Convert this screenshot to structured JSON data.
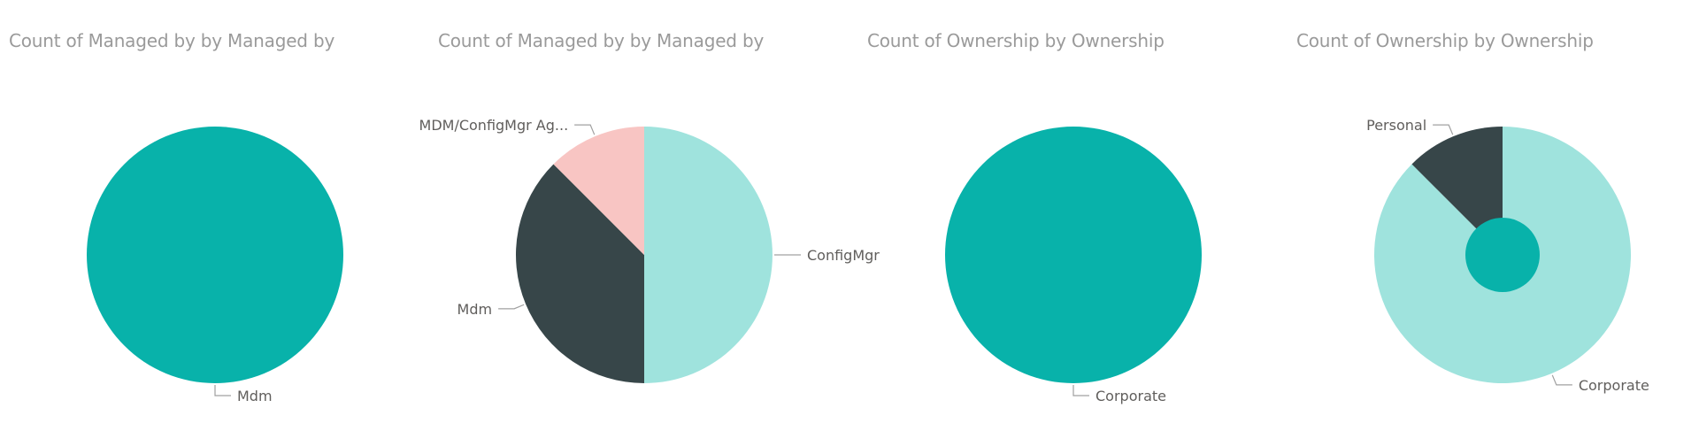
{
  "chart_data": [
    {
      "type": "pie",
      "title": "Count of Managed by by Managed by",
      "slices": [
        {
          "label": "Mdm",
          "value": 1,
          "color": "#08b2aa"
        }
      ]
    },
    {
      "type": "pie",
      "title": "Count of Managed by by Managed by",
      "slices": [
        {
          "label": "ConfigMgr",
          "value": 4,
          "color": "#9fe3dd"
        },
        {
          "label": "Mdm",
          "value": 3,
          "color": "#374649"
        },
        {
          "label": "MDM/ConfigMgr Ag...",
          "value": 1,
          "color": "#f8c5c3"
        }
      ]
    },
    {
      "type": "pie",
      "title": "Count of Ownership by Ownership",
      "slices": [
        {
          "label": "Corporate",
          "value": 1,
          "color": "#08b2aa"
        }
      ]
    },
    {
      "type": "pie",
      "title": "Count of Ownership by Ownership",
      "slices": [
        {
          "label": "Corporate",
          "value": 7,
          "color": "#9fe3dd"
        },
        {
          "label": "Personal",
          "value": 1,
          "color": "#374649"
        }
      ],
      "center_dot_color": "#08b2aa"
    }
  ]
}
